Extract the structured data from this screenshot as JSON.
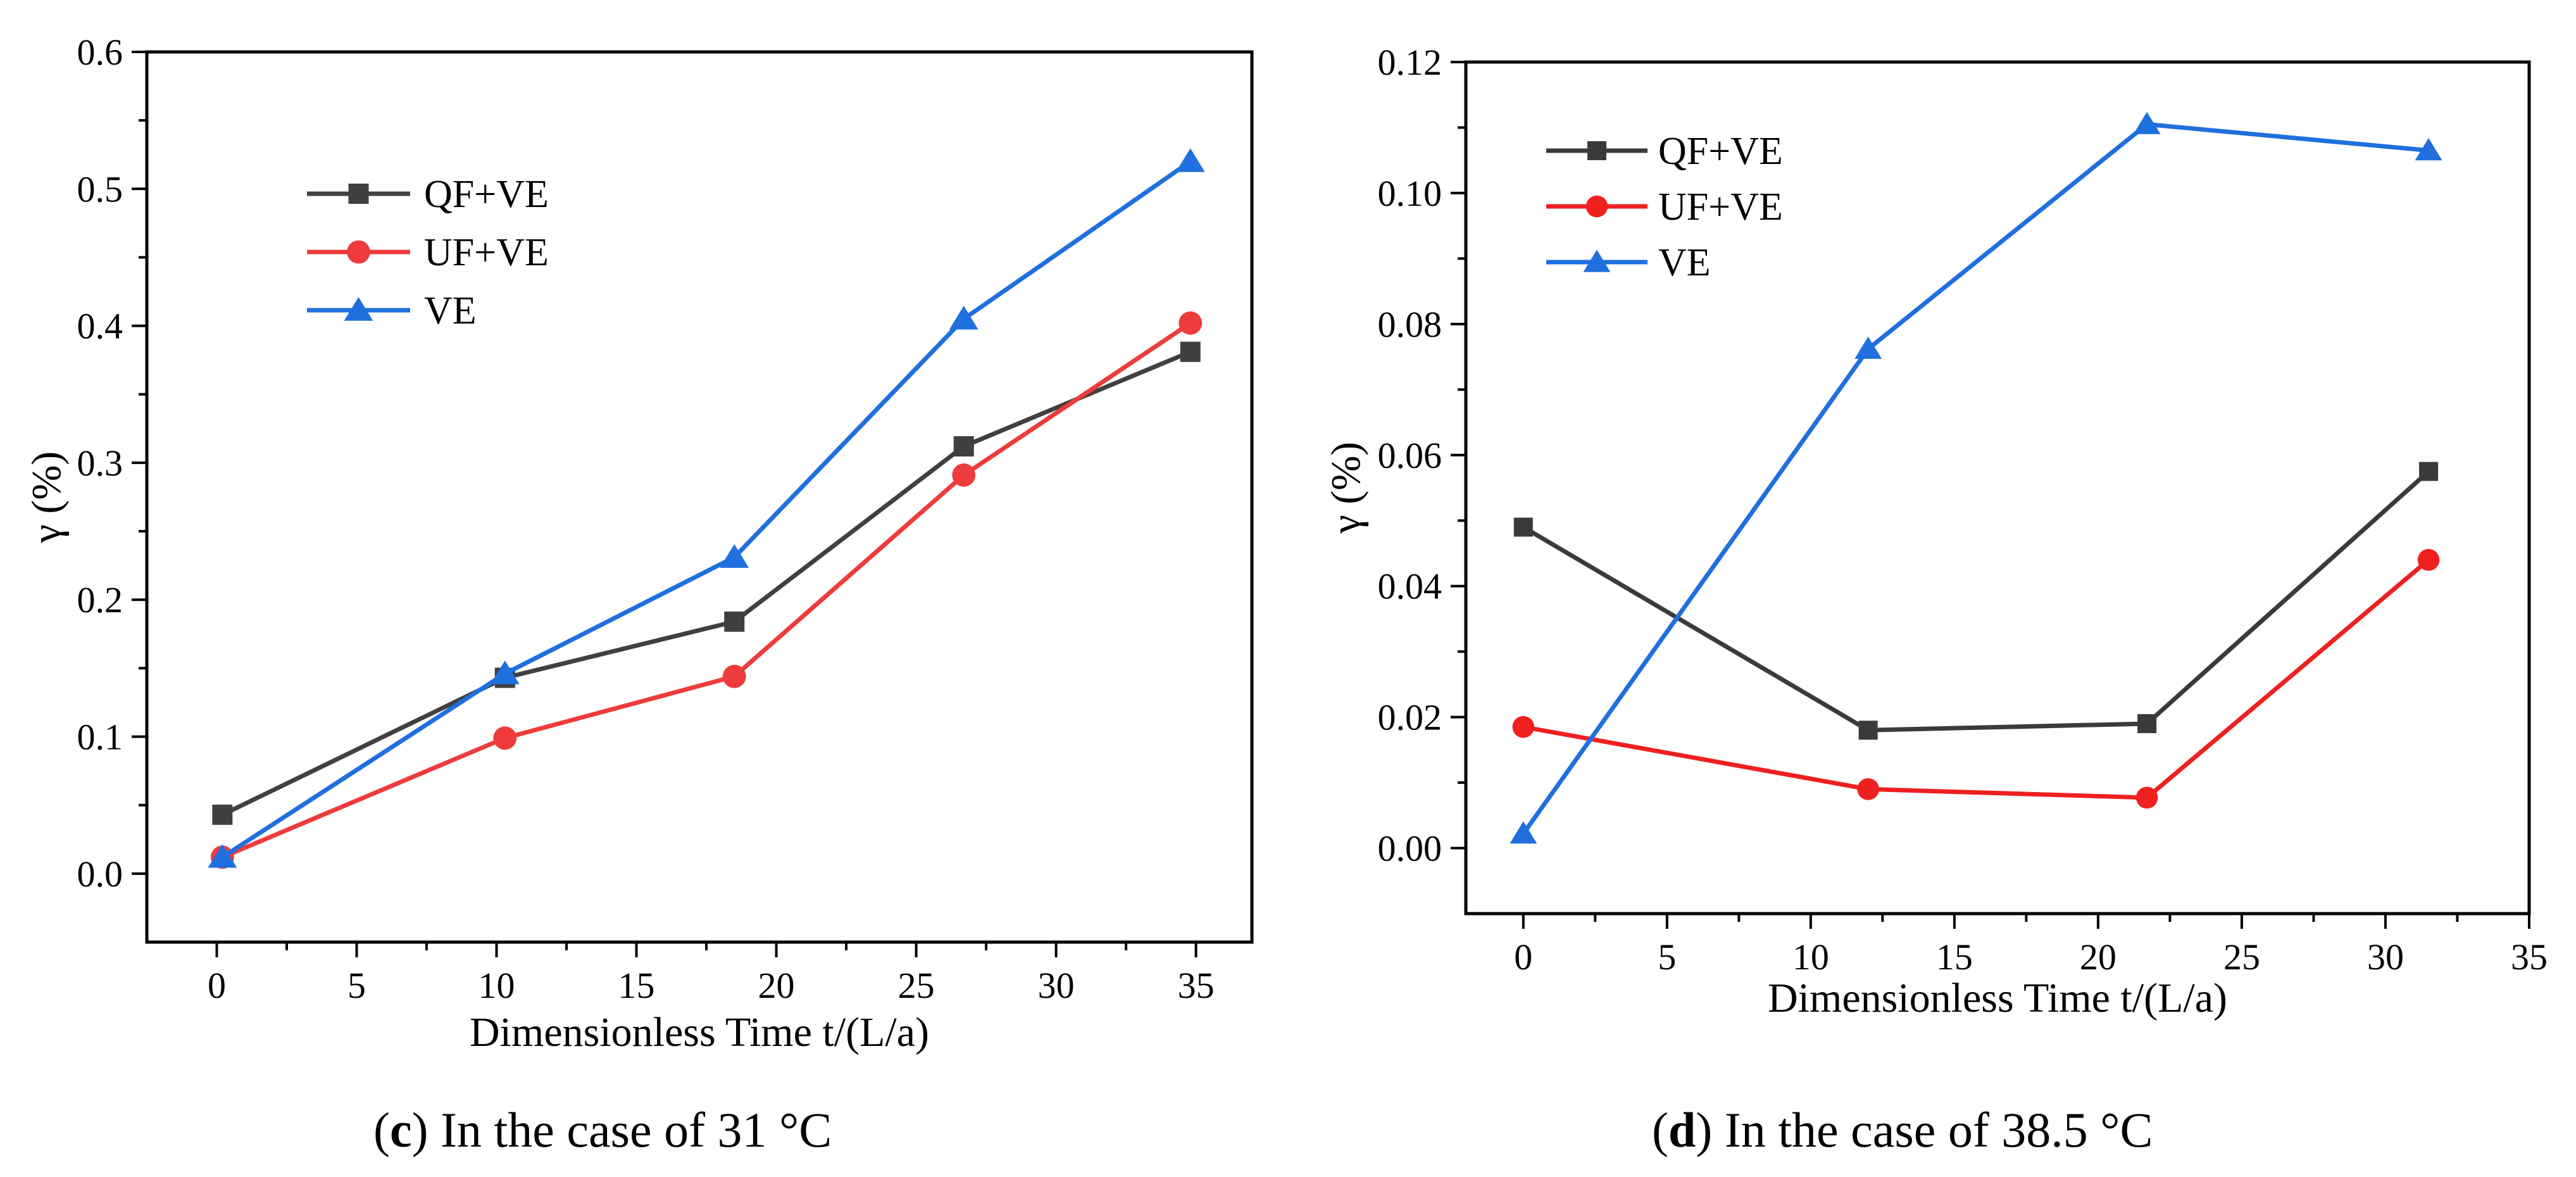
{
  "chart_data": [
    {
      "type": "line",
      "title": "",
      "xlabel": "Dimensionless Time  t/(L/a)",
      "ylabel": "γ (%)",
      "xlim": [
        -2.5,
        37
      ],
      "ylim": [
        -0.05,
        0.6
      ],
      "xticks": [
        "0",
        "5",
        "10",
        "15",
        "20",
        "25",
        "30",
        "35"
      ],
      "yticks": [
        "0.0",
        "0.1",
        "0.2",
        "0.3",
        "0.4",
        "0.5",
        "0.6"
      ],
      "grid": false,
      "legend_position": "top-left",
      "series": [
        {
          "name": "QF+VE",
          "color": "#404040",
          "marker": "square",
          "x": [
            0.2,
            10.3,
            18.5,
            26.7,
            34.8
          ],
          "y": [
            0.043,
            0.143,
            0.184,
            0.312,
            0.381
          ]
        },
        {
          "name": "UF+VE",
          "color": "#ee3b3b",
          "marker": "circle",
          "x": [
            0.2,
            10.3,
            18.5,
            26.7,
            34.8
          ],
          "y": [
            0.012,
            0.099,
            0.144,
            0.291,
            0.402
          ]
        },
        {
          "name": "VE",
          "color": "#1f6fde",
          "marker": "triangle",
          "x": [
            0.2,
            10.3,
            18.5,
            26.7,
            34.8
          ],
          "y": [
            0.012,
            0.146,
            0.231,
            0.405,
            0.52
          ]
        }
      ],
      "caption": {
        "letter": "c",
        "text": ") In the case of 31 °C"
      }
    },
    {
      "type": "line",
      "title": "",
      "xlabel": "Dimensionless Time  t/(L/a)",
      "ylabel": "γ (%)",
      "xlim": [
        -2,
        35
      ],
      "ylim": [
        -0.01,
        0.12
      ],
      "xticks": [
        "0",
        "5",
        "10",
        "15",
        "20",
        "25",
        "30",
        "35"
      ],
      "yticks": [
        "0.00",
        "0.02",
        "0.04",
        "0.06",
        "0.08",
        "0.10",
        "0.12"
      ],
      "grid": false,
      "legend_position": "top-left",
      "series": [
        {
          "name": "QF+VE",
          "color": "#3a3a3a",
          "marker": "square",
          "x": [
            0,
            12,
            21.7,
            31.5
          ],
          "y": [
            0.049,
            0.018,
            0.019,
            0.0575
          ]
        },
        {
          "name": "UF+VE",
          "color": "#ee2020",
          "marker": "circle",
          "x": [
            0,
            12,
            21.7,
            31.5
          ],
          "y": [
            0.0185,
            0.009,
            0.0077,
            0.044
          ]
        },
        {
          "name": "VE",
          "color": "#1f6fde",
          "marker": "triangle",
          "x": [
            0,
            12,
            21.7,
            31.5
          ],
          "y": [
            0.0022,
            0.0762,
            0.1105,
            0.1065
          ]
        }
      ],
      "caption": {
        "letter": "d",
        "text": ") In the case of 38.5 °C"
      }
    }
  ]
}
